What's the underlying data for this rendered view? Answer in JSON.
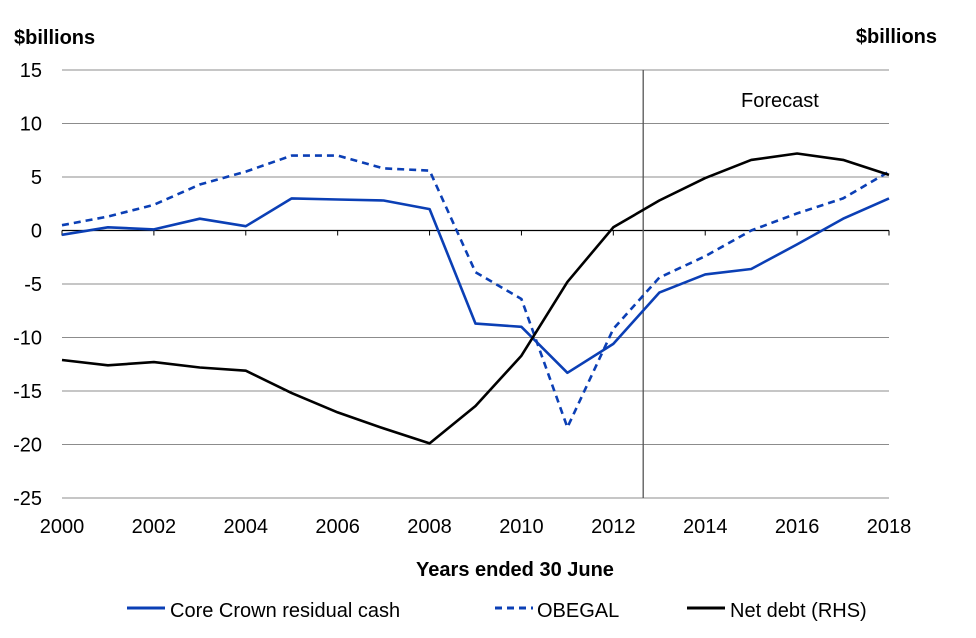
{
  "chart_data": {
    "type": "line",
    "xlabel": "Years ended 30 June",
    "y_unit_left": "$billions",
    "y_unit_right": "$billions",
    "ylim": [
      -25,
      15
    ],
    "y_ticks": [
      15,
      10,
      5,
      0,
      -5,
      -10,
      -15,
      -20,
      -25
    ],
    "xlim": [
      2000,
      2018
    ],
    "x_ticks": [
      2000,
      2002,
      2004,
      2006,
      2008,
      2010,
      2012,
      2014,
      2016,
      2018
    ],
    "forecast_divider_x": 2012.65,
    "annotation": "Forecast",
    "grid": true,
    "legend_position": "bottom",
    "series": [
      {
        "name": "Core Crown residual cash",
        "color": "#0b3fb5",
        "style": "solid",
        "x": [
          2000,
          2001,
          2002,
          2003,
          2004,
          2005,
          2006,
          2007,
          2008,
          2009,
          2010,
          2011,
          2012,
          2013,
          2014,
          2015,
          2016,
          2017,
          2018
        ],
        "y": [
          -0.4,
          0.3,
          0.1,
          1.1,
          0.4,
          3.0,
          2.9,
          2.8,
          2.0,
          -8.7,
          -9.0,
          -13.3,
          -10.6,
          -5.8,
          -4.1,
          -3.6,
          -1.3,
          1.1,
          3.0
        ]
      },
      {
        "name": "OBEGAL",
        "color": "#0b3fb5",
        "style": "dashed",
        "x": [
          2000,
          2001,
          2002,
          2003,
          2004,
          2005,
          2006,
          2007,
          2008,
          2009,
          2010,
          2011,
          2012,
          2013,
          2014,
          2015,
          2016,
          2017,
          2018
        ],
        "y": [
          0.5,
          1.3,
          2.4,
          4.3,
          5.5,
          7.0,
          7.0,
          5.8,
          5.6,
          -3.9,
          -6.4,
          -18.4,
          -9.2,
          -4.4,
          -2.4,
          0.0,
          1.6,
          3.0,
          5.5
        ]
      },
      {
        "name": "Net debt (RHS)",
        "color": "#000000",
        "style": "solid",
        "x": [
          2000,
          2001,
          2002,
          2003,
          2004,
          2005,
          2006,
          2007,
          2008,
          2009,
          2010,
          2011,
          2012,
          2013,
          2014,
          2015,
          2016,
          2017,
          2018
        ],
        "y": [
          -12.1,
          -12.6,
          -12.3,
          -12.8,
          -13.1,
          -15.2,
          -17.0,
          -18.5,
          -19.9,
          -16.4,
          -11.7,
          -4.8,
          0.3,
          2.8,
          4.9,
          6.6,
          7.2,
          6.6,
          5.2
        ]
      }
    ]
  }
}
